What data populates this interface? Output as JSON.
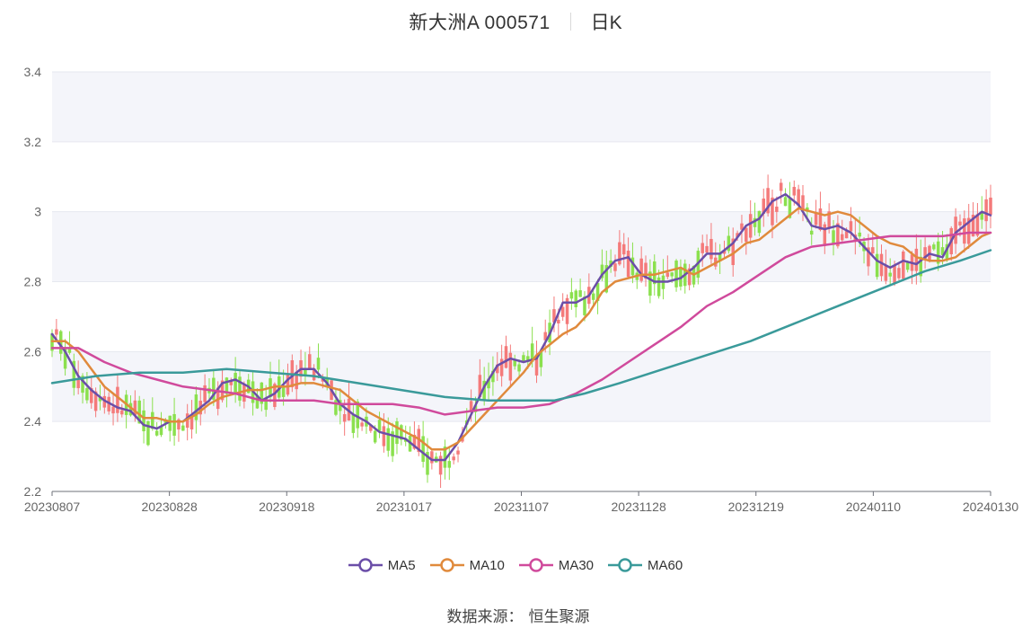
{
  "header": {
    "title": "新大洲A 000571",
    "subtitle": "日K"
  },
  "footer": {
    "source_label": "数据来源：",
    "source_name": "恒生聚源"
  },
  "colors": {
    "up": "#f47a7a",
    "down": "#8be04e",
    "ma5": "#6b4ea8",
    "ma10": "#e08a3c",
    "ma30": "#d04a9c",
    "ma60": "#3a9a9a",
    "band": "#f4f5fa",
    "grid": "#e6e8ef"
  },
  "chart_data": {
    "type": "candlestick",
    "ylim": [
      2.2,
      3.4
    ],
    "yticks": [
      "2.2",
      "2.4",
      "2.6",
      "2.8",
      "3",
      "3.2",
      "3.4"
    ],
    "xticks": [
      "20230807",
      "20230828",
      "20230918",
      "20231017",
      "20231107",
      "20231128",
      "20231219",
      "20240110",
      "20240130"
    ],
    "legend": [
      "MA5",
      "MA10",
      "MA30",
      "MA60"
    ],
    "legend_position": "bottom",
    "series": [
      {
        "name": "MA5",
        "points": [
          [
            0,
            2.65
          ],
          [
            3,
            2.6
          ],
          [
            6,
            2.53
          ],
          [
            9,
            2.49
          ],
          [
            12,
            2.46
          ],
          [
            15,
            2.44
          ],
          [
            18,
            2.43
          ],
          [
            21,
            2.39
          ],
          [
            24,
            2.38
          ],
          [
            27,
            2.4
          ],
          [
            30,
            2.4
          ],
          [
            33,
            2.43
          ],
          [
            36,
            2.46
          ],
          [
            39,
            2.51
          ],
          [
            42,
            2.52
          ],
          [
            45,
            2.5
          ],
          [
            48,
            2.46
          ],
          [
            51,
            2.48
          ],
          [
            54,
            2.52
          ],
          [
            57,
            2.55
          ],
          [
            60,
            2.55
          ],
          [
            63,
            2.51
          ],
          [
            66,
            2.45
          ],
          [
            69,
            2.42
          ],
          [
            72,
            2.4
          ],
          [
            75,
            2.37
          ],
          [
            78,
            2.36
          ],
          [
            81,
            2.35
          ],
          [
            84,
            2.32
          ],
          [
            87,
            2.29
          ],
          [
            90,
            2.29
          ],
          [
            93,
            2.34
          ],
          [
            96,
            2.42
          ],
          [
            99,
            2.5
          ],
          [
            102,
            2.56
          ],
          [
            105,
            2.58
          ],
          [
            108,
            2.57
          ],
          [
            111,
            2.58
          ],
          [
            114,
            2.65
          ],
          [
            117,
            2.74
          ],
          [
            120,
            2.74
          ],
          [
            123,
            2.76
          ],
          [
            126,
            2.82
          ],
          [
            129,
            2.86
          ],
          [
            132,
            2.87
          ],
          [
            135,
            2.82
          ],
          [
            138,
            2.8
          ],
          [
            141,
            2.8
          ],
          [
            144,
            2.81
          ],
          [
            147,
            2.84
          ],
          [
            150,
            2.88
          ],
          [
            153,
            2.88
          ],
          [
            156,
            2.91
          ],
          [
            159,
            2.96
          ],
          [
            162,
            2.98
          ],
          [
            165,
            3.03
          ],
          [
            168,
            3.05
          ],
          [
            171,
            3.02
          ],
          [
            174,
            2.96
          ],
          [
            177,
            2.95
          ],
          [
            180,
            2.96
          ],
          [
            183,
            2.94
          ],
          [
            186,
            2.9
          ],
          [
            189,
            2.86
          ],
          [
            192,
            2.84
          ],
          [
            195,
            2.86
          ],
          [
            198,
            2.85
          ],
          [
            201,
            2.88
          ],
          [
            204,
            2.87
          ],
          [
            207,
            2.94
          ],
          [
            210,
            2.97
          ],
          [
            213,
            3.0
          ],
          [
            215,
            2.99
          ]
        ]
      },
      {
        "name": "MA10",
        "points": [
          [
            0,
            2.63
          ],
          [
            3,
            2.63
          ],
          [
            6,
            2.6
          ],
          [
            9,
            2.55
          ],
          [
            12,
            2.5
          ],
          [
            15,
            2.47
          ],
          [
            18,
            2.44
          ],
          [
            21,
            2.41
          ],
          [
            24,
            2.41
          ],
          [
            27,
            2.4
          ],
          [
            30,
            2.4
          ],
          [
            33,
            2.42
          ],
          [
            36,
            2.45
          ],
          [
            39,
            2.47
          ],
          [
            42,
            2.48
          ],
          [
            45,
            2.49
          ],
          [
            48,
            2.49
          ],
          [
            51,
            2.5
          ],
          [
            54,
            2.5
          ],
          [
            57,
            2.51
          ],
          [
            60,
            2.51
          ],
          [
            63,
            2.5
          ],
          [
            66,
            2.49
          ],
          [
            69,
            2.46
          ],
          [
            72,
            2.43
          ],
          [
            75,
            2.41
          ],
          [
            78,
            2.39
          ],
          [
            81,
            2.37
          ],
          [
            84,
            2.35
          ],
          [
            87,
            2.32
          ],
          [
            90,
            2.32
          ],
          [
            93,
            2.34
          ],
          [
            96,
            2.38
          ],
          [
            99,
            2.42
          ],
          [
            102,
            2.46
          ],
          [
            105,
            2.5
          ],
          [
            108,
            2.54
          ],
          [
            111,
            2.59
          ],
          [
            114,
            2.62
          ],
          [
            117,
            2.65
          ],
          [
            120,
            2.67
          ],
          [
            123,
            2.71
          ],
          [
            126,
            2.77
          ],
          [
            129,
            2.8
          ],
          [
            132,
            2.81
          ],
          [
            135,
            2.82
          ],
          [
            138,
            2.82
          ],
          [
            141,
            2.83
          ],
          [
            144,
            2.84
          ],
          [
            147,
            2.82
          ],
          [
            150,
            2.84
          ],
          [
            153,
            2.86
          ],
          [
            156,
            2.88
          ],
          [
            159,
            2.91
          ],
          [
            162,
            2.92
          ],
          [
            165,
            2.95
          ],
          [
            168,
            2.98
          ],
          [
            171,
            3.01
          ],
          [
            174,
            3.0
          ],
          [
            177,
            2.99
          ],
          [
            180,
            3.0
          ],
          [
            183,
            2.99
          ],
          [
            186,
            2.96
          ],
          [
            189,
            2.93
          ],
          [
            192,
            2.91
          ],
          [
            195,
            2.9
          ],
          [
            198,
            2.87
          ],
          [
            201,
            2.86
          ],
          [
            204,
            2.86
          ],
          [
            207,
            2.87
          ],
          [
            210,
            2.9
          ],
          [
            213,
            2.93
          ],
          [
            215,
            2.94
          ]
        ]
      },
      {
        "name": "MA30",
        "points": [
          [
            0,
            2.61
          ],
          [
            6,
            2.61
          ],
          [
            12,
            2.57
          ],
          [
            18,
            2.54
          ],
          [
            24,
            2.52
          ],
          [
            30,
            2.5
          ],
          [
            36,
            2.49
          ],
          [
            42,
            2.48
          ],
          [
            48,
            2.46
          ],
          [
            54,
            2.46
          ],
          [
            60,
            2.46
          ],
          [
            66,
            2.45
          ],
          [
            72,
            2.45
          ],
          [
            78,
            2.45
          ],
          [
            84,
            2.44
          ],
          [
            90,
            2.42
          ],
          [
            96,
            2.43
          ],
          [
            102,
            2.44
          ],
          [
            108,
            2.44
          ],
          [
            114,
            2.45
          ],
          [
            120,
            2.48
          ],
          [
            126,
            2.52
          ],
          [
            132,
            2.57
          ],
          [
            138,
            2.62
          ],
          [
            144,
            2.67
          ],
          [
            150,
            2.73
          ],
          [
            156,
            2.77
          ],
          [
            162,
            2.82
          ],
          [
            168,
            2.87
          ],
          [
            174,
            2.9
          ],
          [
            180,
            2.91
          ],
          [
            186,
            2.92
          ],
          [
            192,
            2.93
          ],
          [
            198,
            2.93
          ],
          [
            204,
            2.93
          ],
          [
            210,
            2.94
          ],
          [
            215,
            2.94
          ]
        ]
      },
      {
        "name": "MA60",
        "points": [
          [
            0,
            2.51
          ],
          [
            10,
            2.53
          ],
          [
            20,
            2.54
          ],
          [
            30,
            2.54
          ],
          [
            40,
            2.55
          ],
          [
            50,
            2.54
          ],
          [
            60,
            2.53
          ],
          [
            70,
            2.51
          ],
          [
            80,
            2.49
          ],
          [
            90,
            2.47
          ],
          [
            100,
            2.46
          ],
          [
            108,
            2.46
          ],
          [
            115,
            2.46
          ],
          [
            122,
            2.48
          ],
          [
            130,
            2.51
          ],
          [
            140,
            2.55
          ],
          [
            150,
            2.59
          ],
          [
            160,
            2.63
          ],
          [
            170,
            2.68
          ],
          [
            180,
            2.73
          ],
          [
            190,
            2.78
          ],
          [
            200,
            2.83
          ],
          [
            208,
            2.86
          ],
          [
            215,
            2.89
          ]
        ]
      }
    ]
  }
}
